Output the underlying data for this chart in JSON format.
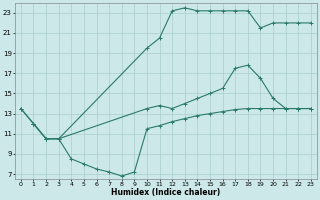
{
  "xlabel": "Humidex (Indice chaleur)",
  "bg_color": "#cce8e8",
  "line_color": "#2a7a6a",
  "grid_color": "#aacece",
  "xlim": [
    -0.5,
    23.5
  ],
  "ylim": [
    6.5,
    24.0
  ],
  "xticks": [
    0,
    1,
    2,
    3,
    4,
    5,
    6,
    7,
    8,
    9,
    10,
    11,
    12,
    13,
    14,
    15,
    16,
    17,
    18,
    19,
    20,
    21,
    22,
    23
  ],
  "yticks": [
    7,
    9,
    11,
    13,
    15,
    17,
    19,
    21,
    23
  ],
  "c1x": [
    0,
    1,
    2,
    3,
    4,
    5,
    6,
    7,
    8,
    9,
    10,
    11,
    12,
    13,
    14,
    15,
    16,
    17,
    18,
    19,
    20,
    21,
    22,
    23
  ],
  "c1y": [
    13.5,
    12.0,
    10.5,
    10.5,
    8.5,
    8.0,
    7.5,
    7.2,
    6.8,
    7.2,
    11.5,
    11.8,
    12.2,
    12.5,
    12.8,
    13.0,
    13.2,
    13.4,
    13.5,
    13.5,
    13.5,
    13.5,
    13.5,
    13.5
  ],
  "c2x": [
    0,
    1,
    2,
    3,
    10,
    11,
    12,
    13,
    14,
    15,
    16,
    17,
    18,
    19,
    20,
    21,
    22,
    23
  ],
  "c2y": [
    13.5,
    12.0,
    10.5,
    10.5,
    19.5,
    20.5,
    23.2,
    23.5,
    23.2,
    23.2,
    23.2,
    23.2,
    23.2,
    21.5,
    22.0,
    22.0,
    22.0,
    22.0
  ],
  "c3x": [
    1,
    2,
    3,
    10,
    11,
    12,
    13,
    14,
    15,
    16,
    17,
    18,
    19,
    20,
    21,
    22,
    23
  ],
  "c3y": [
    12.0,
    10.5,
    10.5,
    13.5,
    13.8,
    13.5,
    14.0,
    14.5,
    15.0,
    15.5,
    17.5,
    17.8,
    16.5,
    14.5,
    13.5,
    13.5,
    13.5
  ]
}
